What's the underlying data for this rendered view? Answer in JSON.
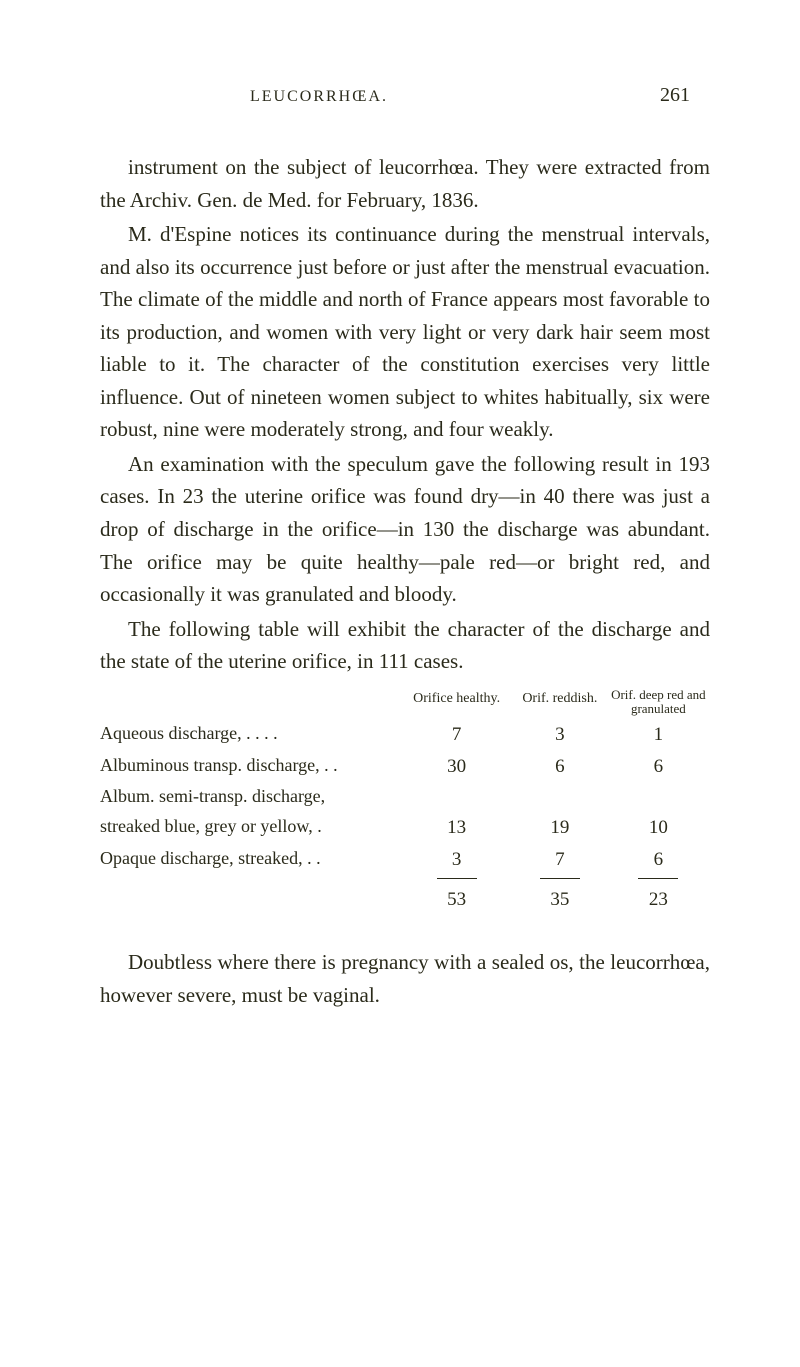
{
  "header": {
    "running_head": "LEUCORRHŒA.",
    "page_number": "261"
  },
  "paragraphs": {
    "p1": "instrument on the subject of leucorrhœa. They were extracted from the Archiv. Gen. de Med. for February, 1836.",
    "p2": "M. d'Espine notices its continuance during the menstrual intervals, and also its occurrence just before or just after the menstrual evacuation. The climate of the middle and north of France appears most favorable to its production, and women with very light or very dark hair seem most liable to it. The character of the constitution exercises very little influence. Out of nineteen women subject to whites habitually, six were robust, nine were moderately strong, and four weakly.",
    "p3": "An examination with the speculum gave the following result in 193 cases. In 23 the uterine orifice was found dry—in 40 there was just a drop of discharge in the orifice—in 130 the discharge was abundant. The orifice may be quite healthy—pale red—or bright red, and occasionally it was granulated and bloody.",
    "p4": "The following table will exhibit the character of the discharge and the state of the uterine orifice, in 111 cases.",
    "p5": "Doubtless where there is pregnancy with a sealed os, the leucorrhœa, however severe, must be vaginal."
  },
  "table": {
    "headers": {
      "col1": "Orifice healthy.",
      "col2": "Orif. reddish.",
      "col3": "Orif. deep red and granulated"
    },
    "rows": [
      {
        "label": "Aqueous discharge,  .  .  .  .",
        "c1": "7",
        "c2": "3",
        "c3": "1"
      },
      {
        "label": "Albuminous transp. discharge, .  .",
        "c1": "30",
        "c2": "6",
        "c3": "6"
      },
      {
        "label": "Album. semi-transp. discharge,",
        "c1": "",
        "c2": "",
        "c3": ""
      },
      {
        "label": "streaked blue, grey or yellow, .",
        "c1": "13",
        "c2": "19",
        "c3": "10"
      },
      {
        "label": "Opaque discharge, streaked,  .  .",
        "c1": "3",
        "c2": "7",
        "c3": "6"
      }
    ],
    "totals": {
      "c1": "53",
      "c2": "35",
      "c3": "23"
    }
  }
}
